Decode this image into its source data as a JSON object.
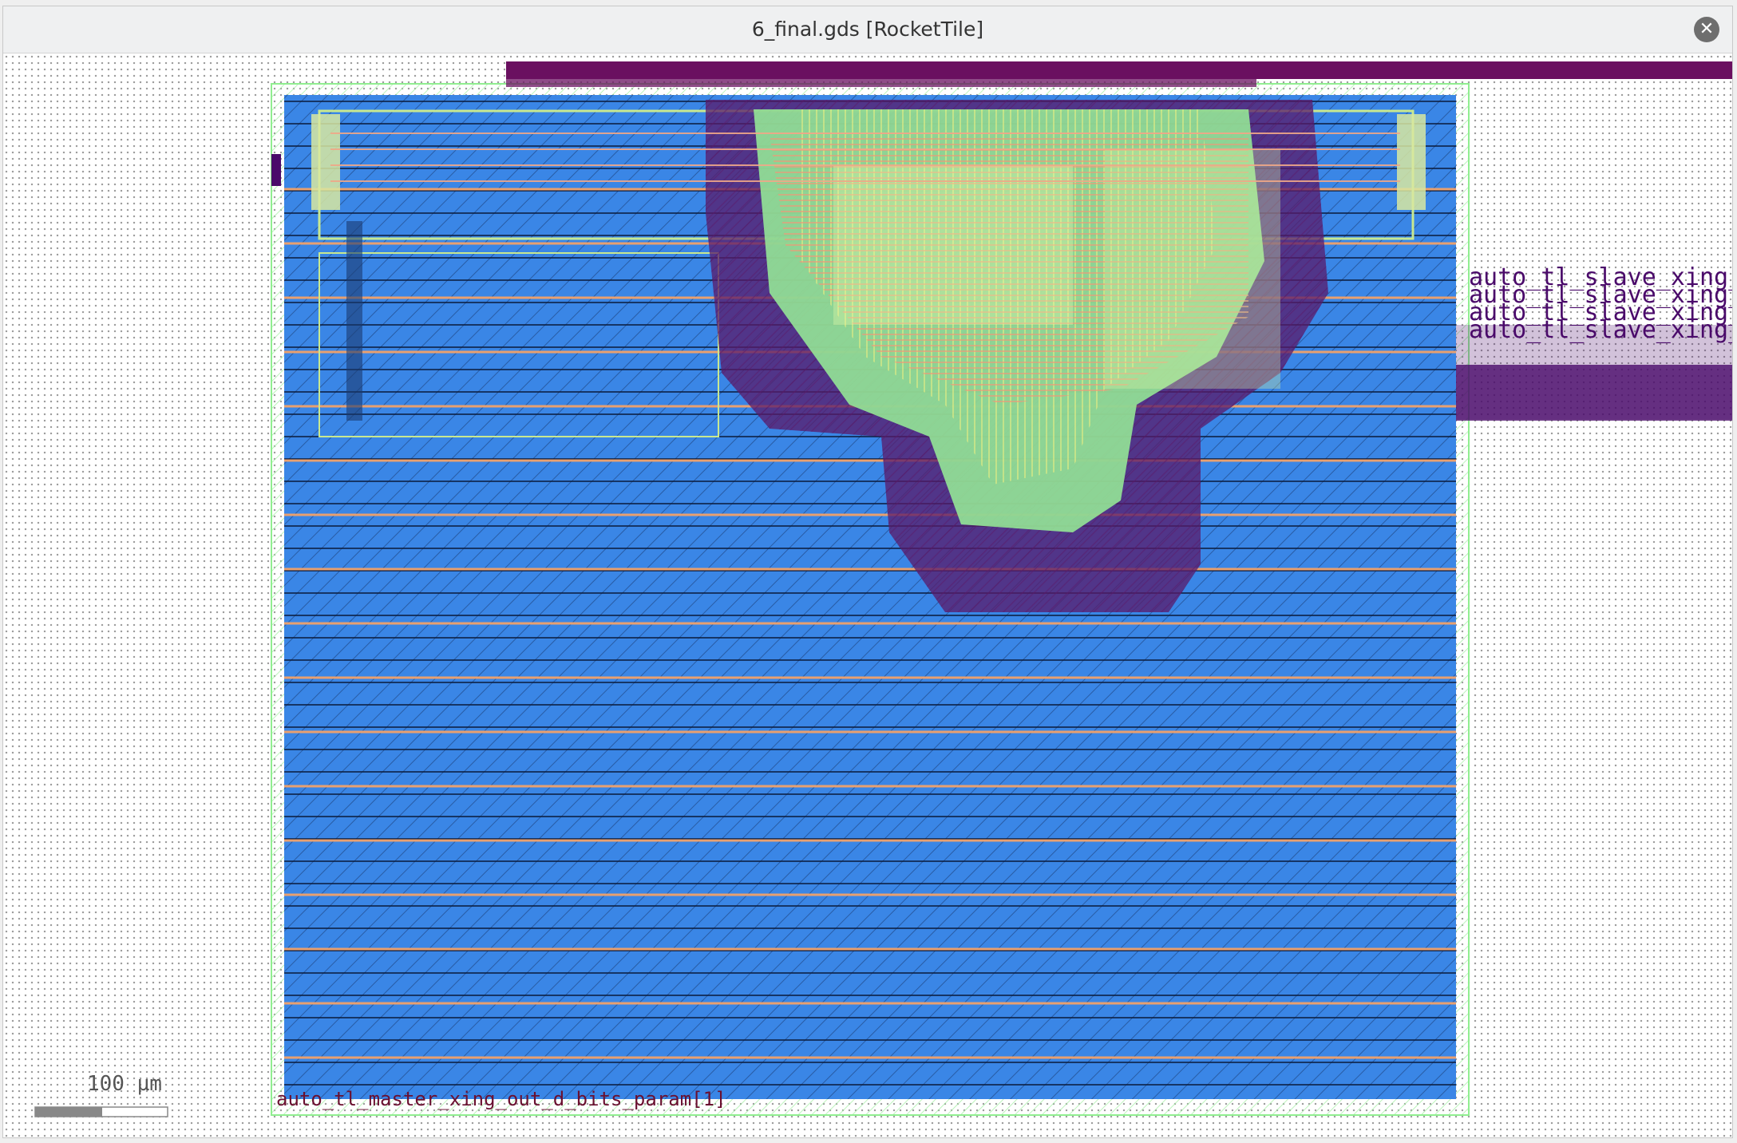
{
  "window": {
    "title": "6_final.gds [RocketTile]",
    "close_icon": "close-icon"
  },
  "layout_view": {
    "pin_labels": [
      "auto_tl_slave_xing_ir",
      "auto_tl_slave_xing_ir",
      "auto_tl_slave_xing_ir",
      "auto_tl_slave_xing_ir"
    ],
    "bottom_label": "auto_tl_master_xing_out_d_bits_param[1]",
    "scale_bar": {
      "label": "100 µm"
    },
    "colors": {
      "background": "#ffffff",
      "grid": "#9a9a9a",
      "core_fill": "#3a86e6",
      "outline": "#90ee90",
      "routing_green": "#98f098",
      "routing_salmon": "#f0a080",
      "routing_yellow": "#f0f090",
      "pins": "#6a1060",
      "label_text": "#4a0a6a"
    }
  }
}
